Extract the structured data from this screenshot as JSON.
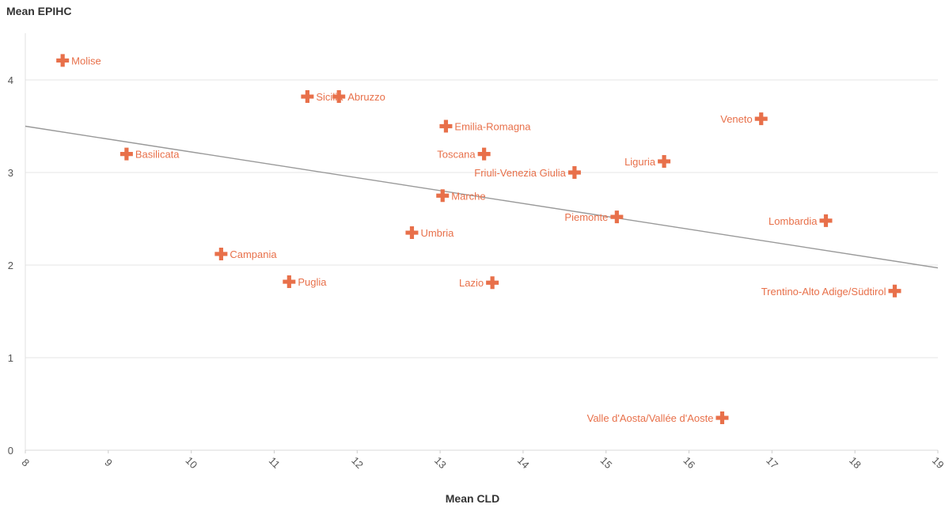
{
  "chart_data": {
    "type": "scatter",
    "title": "",
    "xlabel": "Mean CLD",
    "ylabel": "Mean EPIHC",
    "xlim": [
      8,
      19
    ],
    "ylim": [
      0,
      4.5
    ],
    "x_ticks": [
      "8",
      "9",
      "10",
      "11",
      "12",
      "13",
      "14",
      "15",
      "16",
      "17",
      "18",
      "19"
    ],
    "y_ticks": [
      "0",
      "1",
      "2",
      "3",
      "4"
    ],
    "grid": "horizontal",
    "marker": "cross",
    "colors": {
      "points": "#e8704a",
      "labels": "#e8704a",
      "trendline": "#999999",
      "grid": "#e6e6e6",
      "axis_text": "#555555"
    },
    "trendline": {
      "x": [
        8,
        19
      ],
      "y": [
        3.5,
        1.97
      ]
    },
    "points": [
      {
        "label": "Molise",
        "x": 8.45,
        "y": 4.21,
        "side": "right"
      },
      {
        "label": "Sicilia",
        "x": 11.4,
        "y": 3.82,
        "side": "right"
      },
      {
        "label": "Abruzzo",
        "x": 11.78,
        "y": 3.82,
        "side": "right"
      },
      {
        "label": "Emilia-Romagna",
        "x": 13.07,
        "y": 3.5,
        "side": "right"
      },
      {
        "label": "Veneto",
        "x": 16.87,
        "y": 3.58,
        "side": "left"
      },
      {
        "label": "Basilicata",
        "x": 9.22,
        "y": 3.2,
        "side": "right"
      },
      {
        "label": "Toscana",
        "x": 13.53,
        "y": 3.2,
        "side": "left"
      },
      {
        "label": "Liguria",
        "x": 15.7,
        "y": 3.12,
        "side": "left"
      },
      {
        "label": "Friuli-Venezia Giulia",
        "x": 14.62,
        "y": 3.0,
        "side": "left"
      },
      {
        "label": "Marche",
        "x": 13.03,
        "y": 2.75,
        "side": "right"
      },
      {
        "label": "Piemonte",
        "x": 15.13,
        "y": 2.52,
        "side": "left"
      },
      {
        "label": "Lombardia",
        "x": 17.65,
        "y": 2.48,
        "side": "left"
      },
      {
        "label": "Umbria",
        "x": 12.66,
        "y": 2.35,
        "side": "right"
      },
      {
        "label": "Campania",
        "x": 10.36,
        "y": 2.12,
        "side": "right"
      },
      {
        "label": "Puglia",
        "x": 11.18,
        "y": 1.82,
        "side": "right"
      },
      {
        "label": "Lazio",
        "x": 13.63,
        "y": 1.81,
        "side": "left"
      },
      {
        "label": "Trentino-Alto Adige/Südtirol",
        "x": 18.48,
        "y": 1.72,
        "side": "left"
      },
      {
        "label": "Valle d'Aosta/Vallée d'Aoste",
        "x": 16.4,
        "y": 0.35,
        "side": "left"
      }
    ]
  }
}
